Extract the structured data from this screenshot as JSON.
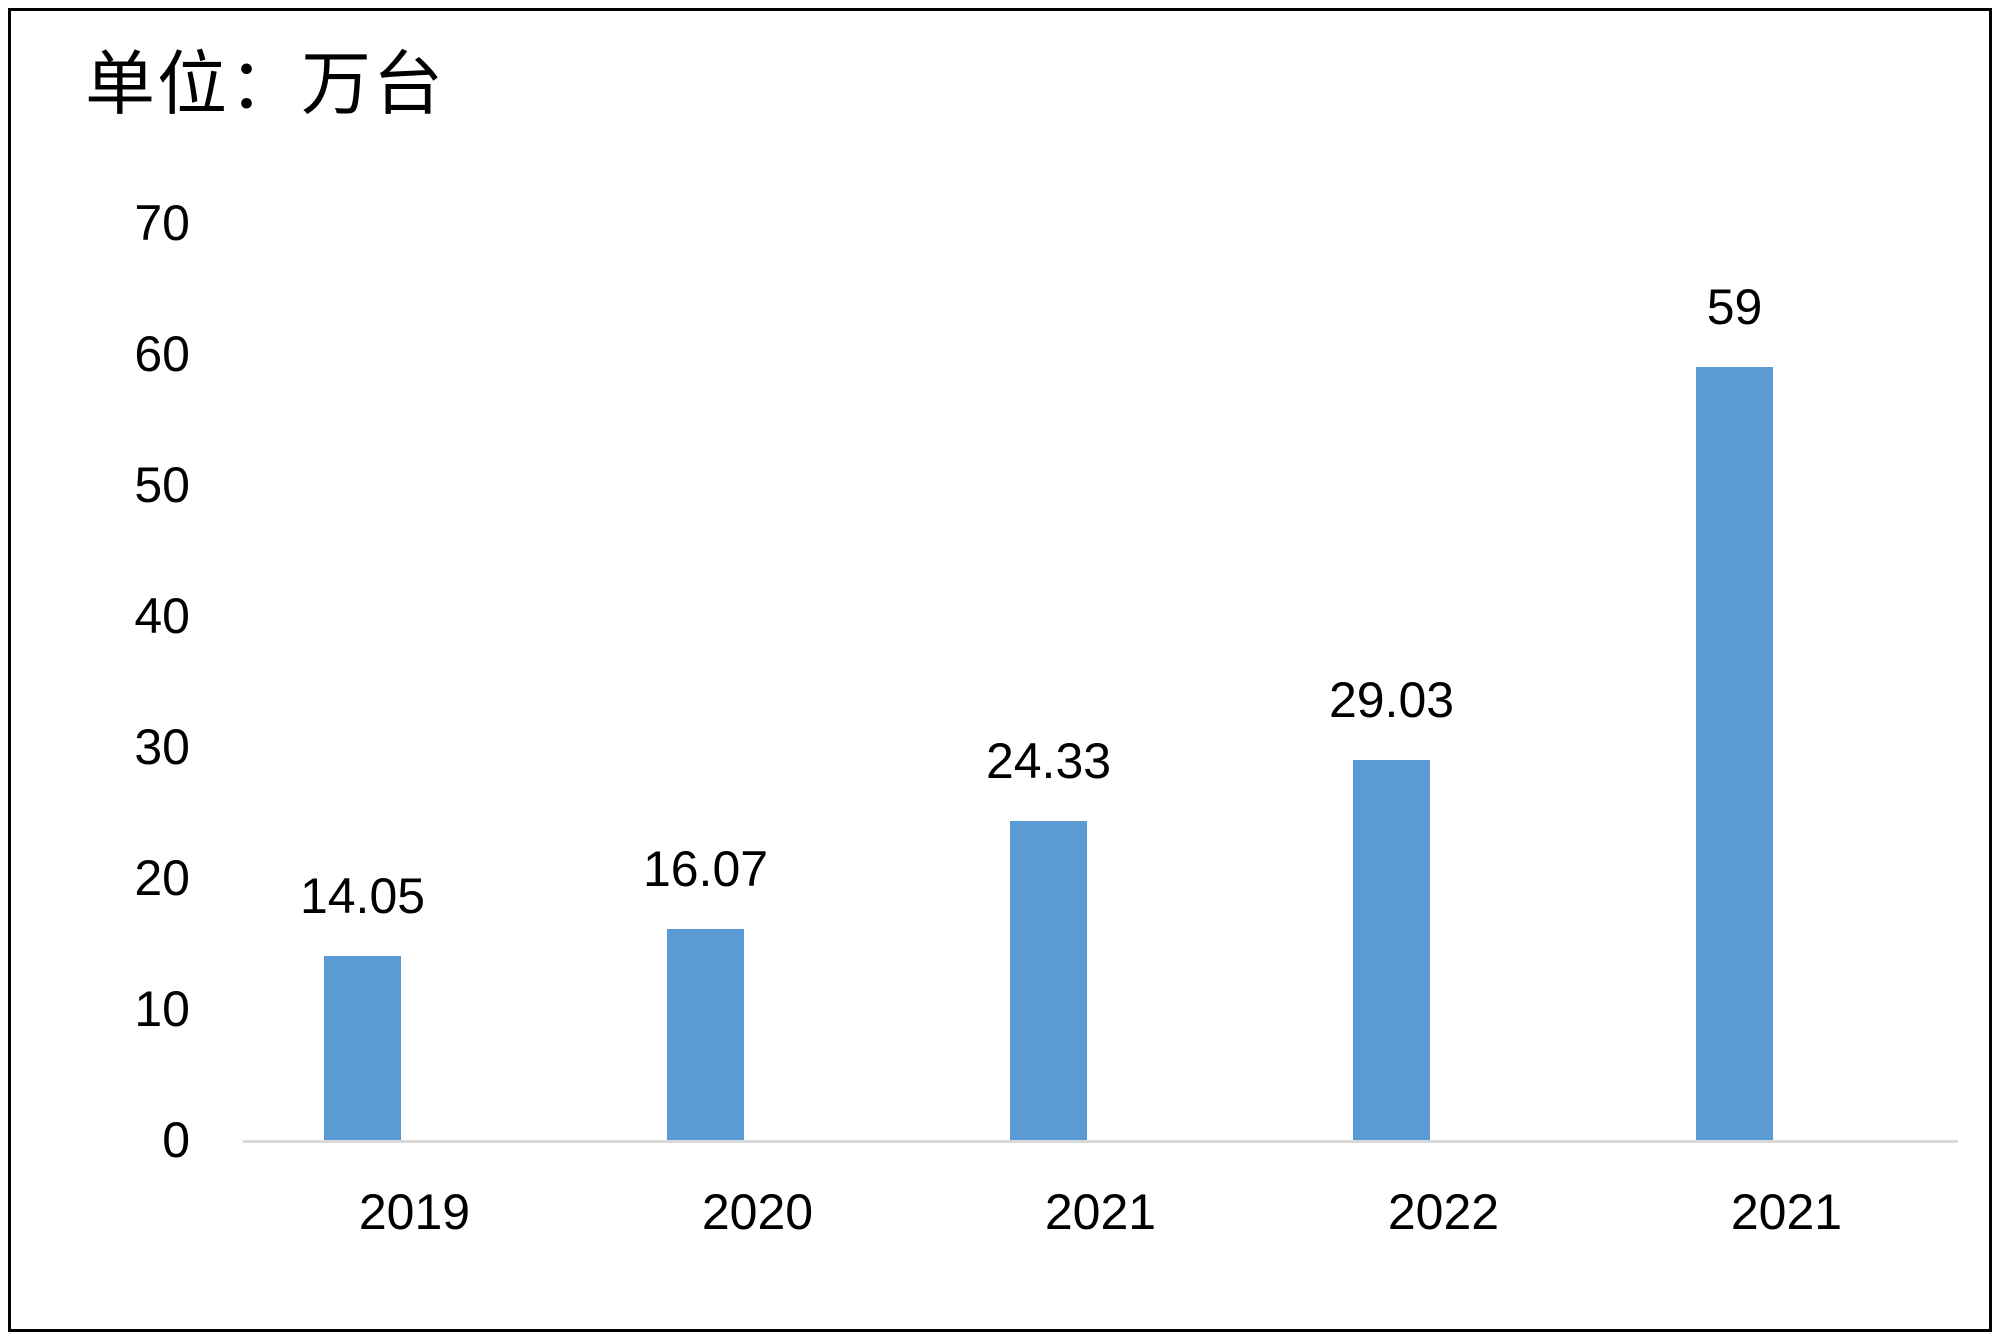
{
  "chart_data": {
    "type": "bar",
    "title": "单位：万台",
    "categories": [
      "2019",
      "2020",
      "2021",
      "2022",
      "2021"
    ],
    "values": [
      14.05,
      16.07,
      24.33,
      29.03,
      59
    ],
    "bar_labels": [
      "14.05",
      "16.07",
      "24.33",
      "29.03",
      "59"
    ],
    "xlabel": "",
    "ylabel": "",
    "ylim": [
      0,
      70
    ],
    "yticks": [
      0,
      10,
      20,
      30,
      40,
      50,
      60,
      70
    ],
    "grid": false,
    "legend": "none",
    "data_labels": true,
    "colors": {
      "bar": "#5B9BD5",
      "axis_line": "#D9D9D9",
      "text": "#000000",
      "frame_border": "#000000",
      "background": "#FFFFFF"
    }
  }
}
